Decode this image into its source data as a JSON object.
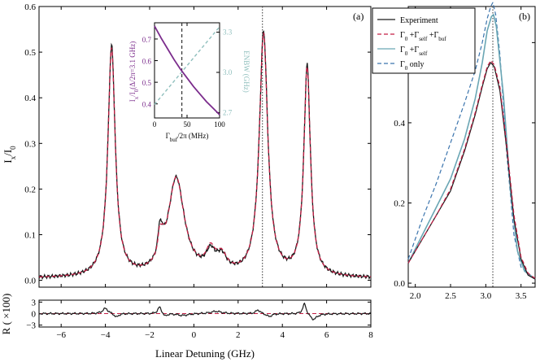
{
  "colors": {
    "experiment": "#1a1a1a",
    "full_model": "#c41e45",
    "gamma0_self": "#6aa6b4",
    "gamma0_only": "#3b74ad",
    "inset_purple": "#7b2c8c",
    "inset_teal": "#8fbfbd",
    "marker": "#333333"
  },
  "chart_data": [
    {
      "id": "panel-a-main",
      "type": "line",
      "panel_label": "(a)",
      "xlabel": "",
      "ylabel": "I_x / I_0",
      "xlim": [
        -7.0,
        8.0
      ],
      "ylim": [
        -0.015,
        0.6
      ],
      "x_ticks": [
        "−6",
        "−4",
        "−2",
        "0",
        "2",
        "4",
        "6",
        "8"
      ],
      "x_tick_values": [
        -6,
        -4,
        -2,
        0,
        2,
        4,
        6,
        8
      ],
      "y_ticks": [
        "0.0",
        "0.1",
        "0.2",
        "0.3",
        "0.4",
        "0.5",
        "0.6"
      ],
      "y_tick_values": [
        0,
        0.1,
        0.2,
        0.3,
        0.4,
        0.5,
        0.6
      ],
      "vline_x": 3.1,
      "series": [
        {
          "name": "Experiment",
          "style": "solid",
          "color_key": "experiment",
          "peaks": [
            {
              "x0": -3.72,
              "amp": 0.505,
              "w": 0.2
            },
            {
              "x0": -1.55,
              "amp": 0.055,
              "w": 0.09
            },
            {
              "x0": -1.42,
              "amp": 0.025,
              "w": 0.1
            },
            {
              "x0": -0.8,
              "amp": 0.215,
              "w": 0.45
            },
            {
              "x0": 0.75,
              "amp": 0.04,
              "w": 0.25
            },
            {
              "x0": 1.25,
              "amp": 0.035,
              "w": 0.3
            },
            {
              "x0": 3.15,
              "amp": 0.535,
              "w": 0.23
            },
            {
              "x0": 5.12,
              "amp": 0.46,
              "w": 0.18
            }
          ]
        },
        {
          "name": "Γ0 + Γself + Γbuf",
          "style": "dashed",
          "color_key": "full_model",
          "peaks": [
            {
              "x0": -3.72,
              "amp": 0.5,
              "w": 0.2
            },
            {
              "x0": -1.55,
              "amp": 0.045,
              "w": 0.09
            },
            {
              "x0": -1.42,
              "amp": 0.025,
              "w": 0.1
            },
            {
              "x0": -0.8,
              "amp": 0.215,
              "w": 0.45
            },
            {
              "x0": 0.75,
              "amp": 0.045,
              "w": 0.25
            },
            {
              "x0": 1.25,
              "amp": 0.037,
              "w": 0.3
            },
            {
              "x0": 3.15,
              "amp": 0.53,
              "w": 0.23
            },
            {
              "x0": 5.12,
              "amp": 0.455,
              "w": 0.18
            }
          ]
        }
      ]
    },
    {
      "id": "panel-a-residual",
      "type": "line",
      "xlabel": "Linear Detuning (GHz)",
      "ylabel": "R  ( ×100)",
      "xlim": [
        -7.0,
        8.0
      ],
      "ylim": [
        -3.5,
        3.5
      ],
      "x_ticks": [
        "−6",
        "−4",
        "−2",
        "0",
        "2",
        "4",
        "6",
        "8"
      ],
      "x_tick_values": [
        -6,
        -4,
        -2,
        0,
        2,
        4,
        6,
        8
      ],
      "y_ticks": [
        "3",
        "0",
        "−3"
      ],
      "y_tick_values": [
        3,
        0,
        -3
      ],
      "features": [
        {
          "x0": -4.0,
          "amp": 1.4,
          "w": 0.15
        },
        {
          "x0": -3.5,
          "amp": -1.0,
          "w": 0.12
        },
        {
          "x0": -1.55,
          "amp": 1.8,
          "w": 0.1
        },
        {
          "x0": -1.3,
          "amp": -0.8,
          "w": 0.1
        },
        {
          "x0": -0.5,
          "amp": -0.5,
          "w": 0.3
        },
        {
          "x0": 1.0,
          "amp": 0.6,
          "w": 0.3
        },
        {
          "x0": 2.9,
          "amp": 1.0,
          "w": 0.12
        },
        {
          "x0": 3.4,
          "amp": -0.8,
          "w": 0.15
        },
        {
          "x0": 5.0,
          "amp": 2.8,
          "w": 0.1
        },
        {
          "x0": 5.4,
          "amp": -1.6,
          "w": 0.2
        }
      ]
    },
    {
      "id": "panel-a-inset",
      "type": "line",
      "xlabel": "Γbuf/2π (MHz)",
      "ylabel_left": "Ix/I0(Δ/2π=3.1 GHz)",
      "ylabel_right": "ENBW (GHz)",
      "xlim": [
        0,
        100
      ],
      "ylim_left": [
        0.335,
        0.775
      ],
      "ylim_right": [
        2.66,
        3.37
      ],
      "x_ticks": [
        "0",
        "50",
        "100"
      ],
      "x_tick_values": [
        0,
        50,
        100
      ],
      "y_ticks_left": [
        "0.4",
        "0.5",
        "0.6",
        "0.7"
      ],
      "y_tick_values_left": [
        0.4,
        0.5,
        0.6,
        0.7
      ],
      "y_ticks_right": [
        "2.7",
        "3.0",
        "3.3"
      ],
      "y_tick_values_right": [
        2.7,
        3.0,
        3.3
      ],
      "vline_x": 42,
      "intensity": {
        "x": [
          0,
          10,
          20,
          30,
          40,
          50,
          60,
          70,
          80,
          90,
          100
        ],
        "y": [
          0.76,
          0.705,
          0.655,
          0.605,
          0.56,
          0.52,
          0.48,
          0.445,
          0.41,
          0.38,
          0.35
        ]
      },
      "enbw": {
        "x": [
          0,
          100
        ],
        "y": [
          2.76,
          3.34
        ]
      }
    },
    {
      "id": "panel-b",
      "type": "line",
      "panel_label": "(b)",
      "xlim": [
        1.9,
        3.7
      ],
      "ylim": [
        -0.01,
        0.69
      ],
      "x_ticks": [
        "2.0",
        "2.5",
        "3.0",
        "3.5"
      ],
      "x_tick_values": [
        2.0,
        2.5,
        3.0,
        3.5
      ],
      "y_ticks": [
        "0.0",
        "0.2",
        "0.4",
        "0.6"
      ],
      "y_tick_values": [
        0,
        0.2,
        0.4,
        0.6
      ],
      "vline_x": 3.1,
      "legend": {
        "position": "top-left",
        "entries": [
          {
            "label": "Experiment",
            "color_key": "experiment",
            "style": "solid"
          },
          {
            "label": "Γ0 +Γself +Γbuf",
            "color_key": "full_model",
            "style": "dashed"
          },
          {
            "label": "Γ0 +Γself",
            "color_key": "gamma0_self",
            "style": "solid"
          },
          {
            "label": "Γ0 only",
            "color_key": "gamma0_only",
            "style": "dashed"
          }
        ]
      },
      "series": [
        {
          "name": "Experiment",
          "style": "solid",
          "color_key": "experiment",
          "x": [
            1.9,
            2.1,
            2.3,
            2.5,
            2.7,
            2.85,
            2.95,
            3.02,
            3.07,
            3.12,
            3.2,
            3.3,
            3.4,
            3.5,
            3.6,
            3.7
          ],
          "y": [
            0.05,
            0.11,
            0.17,
            0.23,
            0.33,
            0.42,
            0.49,
            0.535,
            0.55,
            0.54,
            0.48,
            0.33,
            0.16,
            0.06,
            0.02,
            0.01
          ]
        },
        {
          "name": "Γ0 +Γself +Γbuf",
          "style": "dashed",
          "color_key": "full_model",
          "x": [
            1.9,
            2.1,
            2.3,
            2.5,
            2.7,
            2.85,
            2.95,
            3.02,
            3.07,
            3.12,
            3.2,
            3.3,
            3.4,
            3.5,
            3.6,
            3.7
          ],
          "y": [
            0.05,
            0.11,
            0.17,
            0.235,
            0.335,
            0.425,
            0.495,
            0.54,
            0.555,
            0.545,
            0.49,
            0.34,
            0.17,
            0.065,
            0.025,
            0.012
          ]
        },
        {
          "name": "Γ0 +Γself",
          "style": "solid",
          "color_key": "gamma0_self",
          "x": [
            1.9,
            2.1,
            2.3,
            2.5,
            2.7,
            2.85,
            2.95,
            3.02,
            3.08,
            3.11,
            3.15,
            3.25,
            3.35,
            3.45,
            3.55,
            3.7
          ],
          "y": [
            0.05,
            0.12,
            0.19,
            0.26,
            0.36,
            0.46,
            0.55,
            0.63,
            0.665,
            0.67,
            0.64,
            0.47,
            0.23,
            0.08,
            0.03,
            0.01
          ]
        },
        {
          "name": "Γ0 only",
          "style": "dashed",
          "color_key": "gamma0_only",
          "x": [
            1.9,
            2.1,
            2.3,
            2.5,
            2.7,
            2.85,
            2.95,
            3.02,
            3.07,
            3.1,
            3.14,
            3.2,
            3.3,
            3.4,
            3.5,
            3.7
          ],
          "y": [
            0.06,
            0.16,
            0.25,
            0.35,
            0.45,
            0.53,
            0.6,
            0.66,
            0.69,
            0.7,
            0.67,
            0.57,
            0.32,
            0.12,
            0.04,
            0.01
          ]
        }
      ]
    }
  ]
}
